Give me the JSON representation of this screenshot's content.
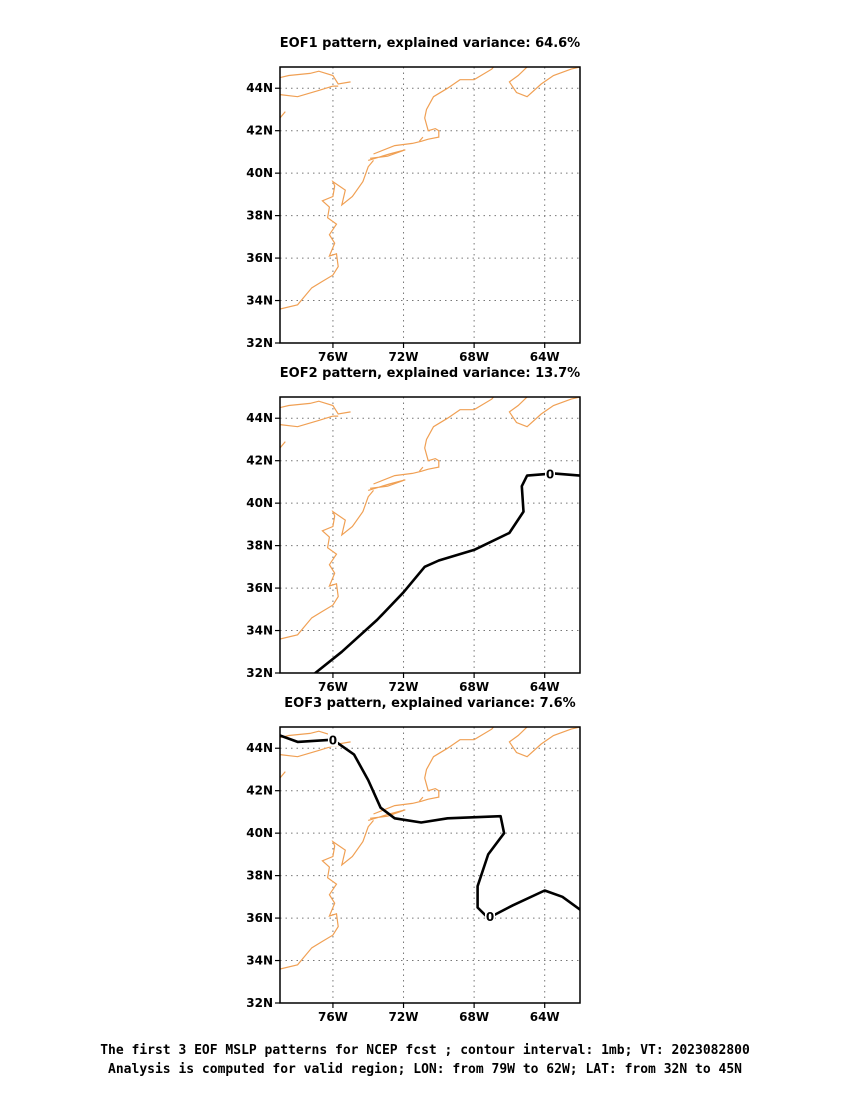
{
  "panels": [
    {
      "title": "EOF1 pattern, explained variance: 64.6%",
      "lat_labels": [
        "44N",
        "42N",
        "40N",
        "38N",
        "36N",
        "34N",
        "32N"
      ],
      "lon_labels": [
        "76W",
        "72W",
        "68W",
        "64W"
      ],
      "zero_contour": null,
      "contour_labels": []
    },
    {
      "title": "EOF2 pattern, explained variance: 13.7%",
      "lat_labels": [
        "44N",
        "42N",
        "40N",
        "38N",
        "36N",
        "34N",
        "32N"
      ],
      "lon_labels": [
        "76W",
        "72W",
        "68W",
        "64W"
      ],
      "zero_contour": [
        [
          -77.0,
          32.0
        ],
        [
          -75.5,
          33.0
        ],
        [
          -73.5,
          34.5
        ],
        [
          -72.0,
          35.8
        ],
        [
          -70.8,
          37.0
        ],
        [
          -70.0,
          37.3
        ],
        [
          -68.0,
          37.8
        ],
        [
          -66.0,
          38.6
        ],
        [
          -65.2,
          39.6
        ],
        [
          -65.3,
          40.8
        ],
        [
          -65.0,
          41.3
        ],
        [
          -63.5,
          41.4
        ],
        [
          -62.0,
          41.3
        ]
      ],
      "contour_labels": [
        {
          "text": "0",
          "lon": -63.7,
          "lat": 41.4
        }
      ]
    },
    {
      "title": "EOF3 pattern, explained variance: 7.6%",
      "lat_labels": [
        "44N",
        "42N",
        "40N",
        "38N",
        "36N",
        "34N",
        "32N"
      ],
      "lon_labels": [
        "76W",
        "72W",
        "68W",
        "64W"
      ],
      "zero_contour": [
        [
          -79.0,
          44.6
        ],
        [
          -78.0,
          44.3
        ],
        [
          -76.0,
          44.4
        ],
        [
          -74.8,
          43.7
        ],
        [
          -74.0,
          42.5
        ],
        [
          -73.3,
          41.2
        ],
        [
          -72.5,
          40.7
        ],
        [
          -71.0,
          40.5
        ],
        [
          -69.5,
          40.7
        ],
        [
          -66.5,
          40.8
        ],
        [
          -66.3,
          40.0
        ],
        [
          -67.2,
          39.0
        ],
        [
          -67.8,
          37.5
        ],
        [
          -67.8,
          36.5
        ],
        [
          -67.2,
          36.0
        ],
        [
          -65.8,
          36.6
        ],
        [
          -64.0,
          37.3
        ],
        [
          -63.0,
          37.0
        ],
        [
          -62.0,
          36.4
        ]
      ],
      "contour_labels": [
        {
          "text": "0",
          "lon": -76.0,
          "lat": 44.4
        },
        {
          "text": "0",
          "lon": -67.1,
          "lat": 36.1
        }
      ]
    }
  ],
  "coastline_color": "#f0a054",
  "caption": {
    "line1": "The first 3 EOF MSLP patterns for NCEP fcst ; contour interval: 1mb; VT: 2023082800",
    "line2": "Analysis is computed for valid region; LON: from 79W to 62W; LAT: from 32N to 45N"
  },
  "chart_data": [
    {
      "type": "contour",
      "title": "EOF1 pattern, explained variance: 64.6%",
      "lon_range": [
        -79,
        -62
      ],
      "lat_range": [
        32,
        45
      ],
      "explained_variance_pct": 64.6,
      "contours": []
    },
    {
      "type": "contour",
      "title": "EOF2 pattern, explained variance: 13.7%",
      "lon_range": [
        -79,
        -62
      ],
      "lat_range": [
        32,
        45
      ],
      "explained_variance_pct": 13.7,
      "contours": [
        {
          "level": 0
        }
      ]
    },
    {
      "type": "contour",
      "title": "EOF3 pattern, explained variance: 7.6%",
      "lon_range": [
        -79,
        -62
      ],
      "lat_range": [
        32,
        45
      ],
      "explained_variance_pct": 7.6,
      "contours": [
        {
          "level": 0
        }
      ]
    }
  ]
}
